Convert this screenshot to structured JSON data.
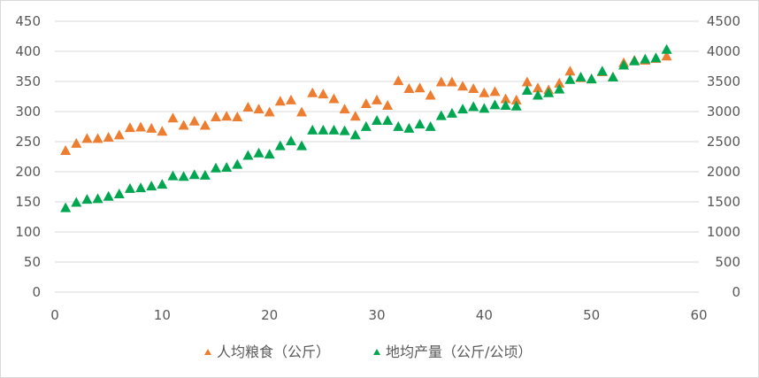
{
  "chart_data": {
    "type": "scatter",
    "xlim": [
      0,
      60
    ],
    "ylim_left": [
      0,
      450
    ],
    "ylim_right": [
      0,
      4500
    ],
    "x_ticks": [
      "0",
      "10",
      "20",
      "30",
      "40",
      "50",
      "60"
    ],
    "y_left_ticks": [
      "0",
      "50",
      "100",
      "150",
      "200",
      "250",
      "300",
      "350",
      "400",
      "450"
    ],
    "y_right_ticks": [
      "0",
      "500",
      "1000",
      "1500",
      "2000",
      "2500",
      "3000",
      "3500",
      "4000",
      "4500"
    ],
    "grid": "horizontal",
    "legend_position": "bottom",
    "series": [
      {
        "name": "人均粮食（公斤）",
        "axis": "left",
        "color": "#ed7d31",
        "marker": "triangle",
        "x": [
          1,
          2,
          3,
          4,
          5,
          6,
          7,
          8,
          9,
          10,
          11,
          12,
          13,
          14,
          15,
          16,
          17,
          18,
          19,
          20,
          21,
          22,
          23,
          24,
          25,
          26,
          27,
          28,
          29,
          30,
          31,
          32,
          33,
          34,
          35,
          36,
          37,
          38,
          39,
          40,
          41,
          42,
          43,
          44,
          45,
          46,
          47,
          48,
          49,
          50,
          51,
          52,
          53,
          54,
          55,
          56,
          57
        ],
        "y": [
          236,
          248,
          256,
          256,
          258,
          262,
          274,
          275,
          273,
          268,
          290,
          278,
          285,
          278,
          292,
          293,
          292,
          308,
          305,
          300,
          318,
          320,
          300,
          332,
          330,
          322,
          305,
          293,
          314,
          320,
          311,
          352,
          339,
          340,
          328,
          350,
          350,
          343,
          339,
          332,
          334,
          322,
          320,
          350,
          340,
          337,
          348,
          368,
          357,
          355,
          367,
          358,
          382,
          386,
          386,
          389,
          393
        ]
      },
      {
        "name": "地均产量（公斤/公顷）",
        "axis": "right",
        "color": "#00a650",
        "marker": "triangle",
        "x": [
          1,
          2,
          3,
          4,
          5,
          6,
          7,
          8,
          9,
          10,
          11,
          12,
          13,
          14,
          15,
          16,
          17,
          18,
          19,
          20,
          21,
          22,
          23,
          24,
          25,
          26,
          27,
          28,
          29,
          30,
          31,
          32,
          33,
          34,
          35,
          36,
          37,
          38,
          39,
          40,
          41,
          42,
          43,
          44,
          45,
          46,
          47,
          48,
          49,
          50,
          51,
          52,
          53,
          54,
          55,
          56,
          57
        ],
        "y": [
          1410,
          1500,
          1550,
          1560,
          1600,
          1640,
          1730,
          1740,
          1770,
          1800,
          1940,
          1930,
          1960,
          1950,
          2070,
          2080,
          2130,
          2280,
          2320,
          2300,
          2440,
          2520,
          2440,
          2700,
          2700,
          2700,
          2690,
          2620,
          2760,
          2860,
          2860,
          2760,
          2730,
          2800,
          2760,
          2940,
          2980,
          3050,
          3090,
          3060,
          3120,
          3110,
          3100,
          3360,
          3280,
          3320,
          3380,
          3540,
          3580,
          3550,
          3680,
          3580,
          3780,
          3850,
          3880,
          3900,
          4040
        ]
      }
    ]
  }
}
